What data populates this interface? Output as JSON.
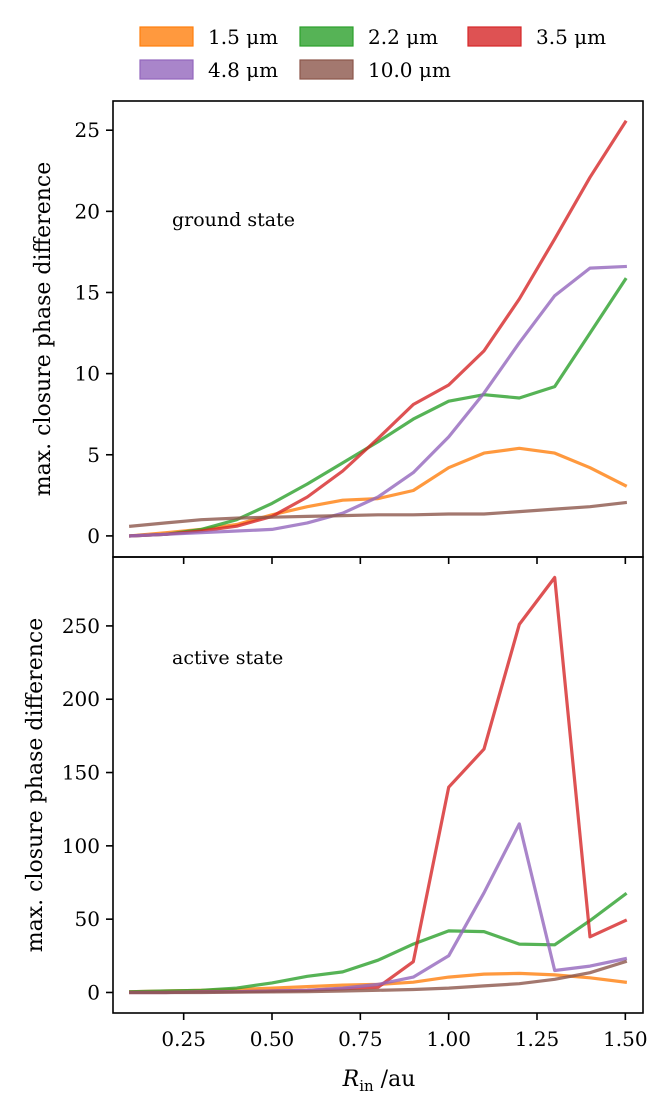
{
  "legend": {
    "placement": "top-center",
    "entries": [
      {
        "label": "1.5 μm",
        "color": "#ff7f0e"
      },
      {
        "label": "2.2 μm",
        "color": "#2ca02c"
      },
      {
        "label": "3.5 μm",
        "color": "#d62728"
      },
      {
        "label": "4.8 μm",
        "color": "#9467bd"
      },
      {
        "label": "10.0 μm",
        "color": "#8c564b"
      }
    ]
  },
  "chart_data": [
    {
      "type": "line",
      "annotation": "ground state",
      "ylabel": "max. closure phase difference",
      "xlabel": "",
      "xlim": [
        0.05,
        1.55
      ],
      "ylim": [
        -1.3,
        26.8
      ],
      "yticks": [
        0,
        5,
        10,
        15,
        20,
        25
      ],
      "ytick_labels": [
        "0",
        "5",
        "10",
        "15",
        "20",
        "25"
      ],
      "x": [
        0.1,
        0.2,
        0.3,
        0.4,
        0.5,
        0.6,
        0.7,
        0.8,
        0.9,
        1.0,
        1.1,
        1.2,
        1.3,
        1.4,
        1.5
      ],
      "series": [
        {
          "name": "1.5 μm",
          "color": "#ff7f0e",
          "values": [
            0.0,
            0.2,
            0.4,
            0.7,
            1.3,
            1.8,
            2.2,
            2.3,
            2.8,
            4.2,
            5.1,
            5.4,
            5.1,
            4.2,
            3.1
          ]
        },
        {
          "name": "2.2 μm",
          "color": "#2ca02c",
          "values": [
            0.0,
            0.1,
            0.4,
            1.0,
            2.0,
            3.2,
            4.5,
            5.8,
            7.2,
            8.3,
            8.7,
            8.5,
            9.2,
            12.5,
            15.8
          ]
        },
        {
          "name": "3.5 μm",
          "color": "#d62728",
          "values": [
            0.0,
            0.1,
            0.3,
            0.6,
            1.2,
            2.4,
            4.0,
            6.0,
            8.1,
            9.3,
            11.4,
            14.6,
            18.3,
            22.1,
            25.5
          ]
        },
        {
          "name": "4.8 μm",
          "color": "#9467bd",
          "values": [
            0.0,
            0.1,
            0.2,
            0.3,
            0.4,
            0.8,
            1.4,
            2.4,
            3.9,
            6.1,
            8.8,
            11.9,
            14.8,
            16.5,
            16.6
          ]
        },
        {
          "name": "10.0 μm",
          "color": "#8c564b",
          "values": [
            0.6,
            0.8,
            1.0,
            1.1,
            1.15,
            1.2,
            1.25,
            1.3,
            1.3,
            1.35,
            1.35,
            1.5,
            1.65,
            1.8,
            2.05
          ]
        }
      ]
    },
    {
      "type": "line",
      "annotation": "active state",
      "ylabel": "max. closure phase difference",
      "xlabel": "R_in /au",
      "xlim": [
        0.05,
        1.55
      ],
      "ylim": [
        -14,
        297
      ],
      "yticks": [
        0,
        50,
        100,
        150,
        200,
        250
      ],
      "ytick_labels": [
        "0",
        "50",
        "100",
        "150",
        "200",
        "250"
      ],
      "xticks": [
        0.25,
        0.5,
        0.75,
        1.0,
        1.25,
        1.5
      ],
      "xtick_labels": [
        "0.25",
        "0.50",
        "0.75",
        "1.00",
        "1.25",
        "1.50"
      ],
      "x": [
        0.1,
        0.2,
        0.3,
        0.4,
        0.5,
        0.6,
        0.7,
        0.8,
        0.9,
        1.0,
        1.1,
        1.2,
        1.3,
        1.4,
        1.5
      ],
      "series": [
        {
          "name": "1.5 μm",
          "color": "#ff7f0e",
          "values": [
            0.5,
            1.0,
            1.5,
            2.0,
            3.0,
            4.0,
            5.0,
            5.5,
            7.0,
            10.5,
            12.5,
            13.0,
            12.0,
            10.0,
            7.0
          ]
        },
        {
          "name": "2.2 μm",
          "color": "#2ca02c",
          "values": [
            0.5,
            1.0,
            1.5,
            3.0,
            6.5,
            11.0,
            14.0,
            22.0,
            33.0,
            42.0,
            41.5,
            33.0,
            32.5,
            49.0,
            67.0
          ]
        },
        {
          "name": "3.5 μm",
          "color": "#d62728",
          "values": [
            0.0,
            0.0,
            0.5,
            0.5,
            1.0,
            1.5,
            2.5,
            3.5,
            21.0,
            140.0,
            166.0,
            251.0,
            283.0,
            38.0,
            49.0
          ]
        },
        {
          "name": "4.8 μm",
          "color": "#9467bd",
          "values": [
            0.0,
            0.0,
            0.3,
            0.5,
            1.0,
            1.5,
            3.0,
            5.5,
            10.5,
            25.0,
            68.0,
            115.0,
            15.0,
            18.0,
            23.0
          ]
        },
        {
          "name": "10.0 μm",
          "color": "#8c564b",
          "values": [
            0.0,
            0.0,
            0.0,
            0.2,
            0.4,
            0.6,
            1.0,
            1.5,
            2.0,
            3.0,
            4.5,
            6.0,
            9.0,
            13.5,
            21.0
          ]
        }
      ]
    }
  ],
  "axis_labels": {
    "ylabel_top": "max. closure phase difference",
    "ylabel_bottom": "max. closure phase difference",
    "xlabel_main": "R",
    "xlabel_sub": "in",
    "xlabel_unit": " /au"
  }
}
